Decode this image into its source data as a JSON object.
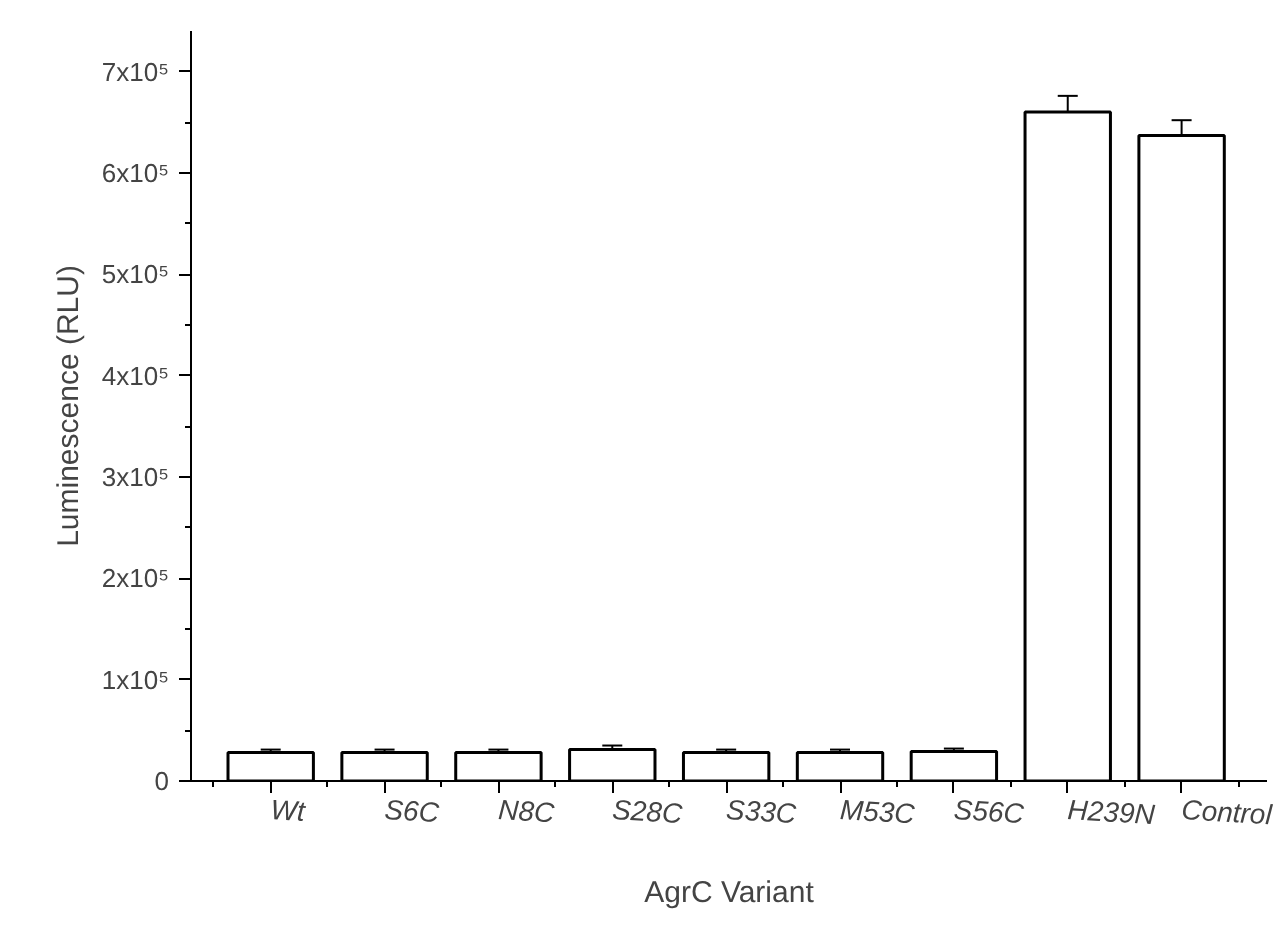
{
  "chart_data": {
    "type": "bar",
    "xlabel": "AgrC Variant",
    "ylabel": "Luminescence (RLU)",
    "categories": [
      "Wt",
      "S6C",
      "N8C",
      "S28C",
      "S33C",
      "M53C",
      "S56C",
      "H239N",
      "Control"
    ],
    "values": [
      28000,
      28000,
      28000,
      31000,
      28000,
      28000,
      29000,
      660000,
      637000
    ],
    "errors": [
      3000,
      3000,
      3000,
      4000,
      3000,
      3000,
      3000,
      16000,
      15000
    ],
    "color": "#ffffff",
    "ylim": [
      0,
      740000
    ],
    "yticks": [
      {
        "value": 0,
        "label": "0"
      },
      {
        "value": 100000,
        "label": "1x10⁵"
      },
      {
        "value": 200000,
        "label": "2x10⁵"
      },
      {
        "value": 300000,
        "label": "3x10⁵"
      },
      {
        "value": 400000,
        "label": "4x10⁵"
      },
      {
        "value": 500000,
        "label": "5x10⁵"
      },
      {
        "value": 600000,
        "label": "6x10⁵"
      },
      {
        "value": 700000,
        "label": "7x10⁵"
      }
    ],
    "grid": false
  }
}
